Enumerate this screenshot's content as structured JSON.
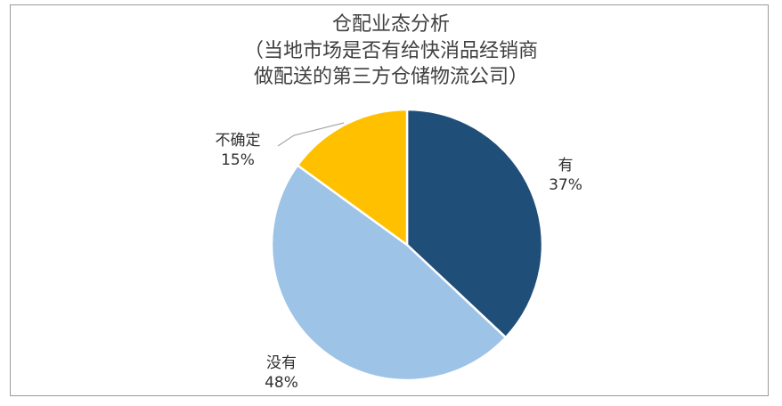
{
  "chart_data": {
    "type": "pie",
    "title": [
      "仓配业态分析",
      "（当地市场是否有给快消品经销商",
      "做配送的第三方仓储物流公司）"
    ],
    "slices": [
      {
        "label": "有",
        "value": 37,
        "value_text": "37%",
        "color": "#1f4e79"
      },
      {
        "label": "没有",
        "value": 48,
        "value_text": "48%",
        "color": "#9dc3e6"
      },
      {
        "label": "不确定",
        "value": 15,
        "value_text": "15%",
        "color": "#ffc000"
      }
    ],
    "start_angle_deg": 0,
    "direction": "clockwise"
  }
}
